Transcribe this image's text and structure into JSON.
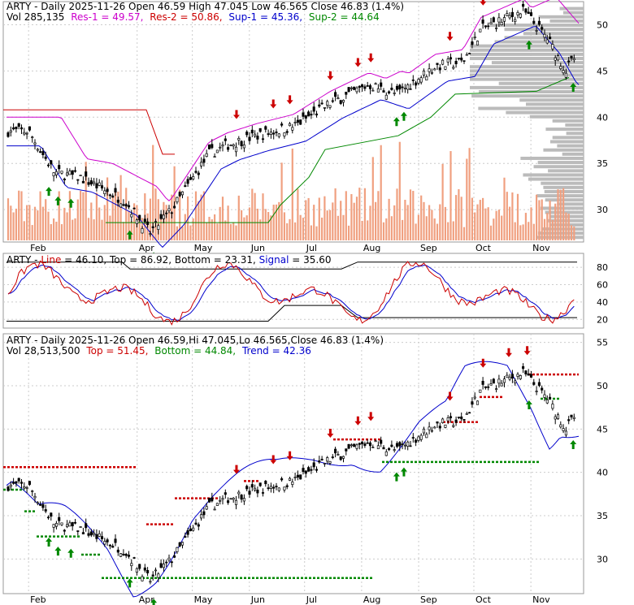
{
  "chart_data": [
    {
      "type": "candlestick",
      "panel": "price",
      "title": {
        "name": "ARTY",
        "rest": " - Daily 2025-11-26 Open 46.59  High 47.045  Low 46.565  Close 46.83 (1.4%)"
      },
      "legend": [
        {
          "label": "Vol 285,135",
          "color": "#000000"
        },
        {
          "label": "Res-1 = 49.57,",
          "color": "#cc00cc"
        },
        {
          "label": "Res-2 = 50.86,",
          "color": "#cc0000"
        },
        {
          "label": "Sup-1 = 45.36,",
          "color": "#0000cc"
        },
        {
          "label": "Sup-2 = 44.64",
          "color": "#008800"
        }
      ],
      "y_ticks": [
        "50",
        "45",
        "40",
        "35",
        "30"
      ],
      "months": [
        "Feb",
        "Apr",
        "May",
        "Jun",
        "Jul",
        "Aug",
        "Sep",
        "Oct",
        "Nov"
      ],
      "ylim": [
        26.5,
        52.5
      ],
      "key_closes": [
        [
          "2025-02-01",
          38.5
        ],
        [
          "2025-02-15",
          34.0
        ],
        [
          "2025-03-01",
          33.5
        ],
        [
          "2025-03-25",
          31.0
        ],
        [
          "2025-04-08",
          27.5
        ],
        [
          "2025-04-20",
          30.0
        ],
        [
          "2025-05-10",
          36.0
        ],
        [
          "2025-05-20",
          37.0
        ],
        [
          "2025-06-05",
          38.0
        ],
        [
          "2025-06-25",
          39.0
        ],
        [
          "2025-07-15",
          41.5
        ],
        [
          "2025-08-05",
          43.5
        ],
        [
          "2025-08-20",
          42.5
        ],
        [
          "2025-09-10",
          45.5
        ],
        [
          "2025-09-25",
          46.0
        ],
        [
          "2025-10-05",
          49.5
        ],
        [
          "2025-10-28",
          51.5
        ],
        [
          "2025-11-10",
          48.5
        ],
        [
          "2025-11-20",
          45.0
        ],
        [
          "2025-11-26",
          46.83
        ]
      ],
      "buy_signals": [
        "2025-02-12",
        "2025-02-17",
        "2025-02-24",
        "2025-03-28",
        "2025-04-10",
        "2025-08-20",
        "2025-08-24",
        "2025-10-31",
        "2025-11-24"
      ],
      "sell_signals": [
        "2025-05-25",
        "2025-06-14",
        "2025-06-23",
        "2025-07-15",
        "2025-07-30",
        "2025-08-06",
        "2025-09-18",
        "2025-10-06",
        "2025-10-20",
        "2025-10-30"
      ]
    },
    {
      "type": "line",
      "panel": "stochastic",
      "title": {
        "name": "ARTY",
        "parts": [
          {
            "label": " - ",
            "color": "#000000"
          },
          {
            "label": "Line",
            "color": "#cc0000"
          },
          {
            "label": " = 46.10, ",
            "color": "#000000"
          },
          {
            "label": "Top",
            "color": "#000000"
          },
          {
            "label": " = 86.92, ",
            "color": "#000000"
          },
          {
            "label": "Bottom",
            "color": "#000000"
          },
          {
            "label": " = 23.31, ",
            "color": "#000000"
          },
          {
            "label": "Signal",
            "color": "#0000cc"
          },
          {
            "label": " = 35.60",
            "color": "#000000"
          }
        ]
      },
      "y_ticks": [
        "80",
        "60",
        "40",
        "20"
      ],
      "ylim": [
        10,
        96
      ]
    },
    {
      "type": "candlestick",
      "panel": "price-trend",
      "title": {
        "name": "ARTY",
        "rest": " - Daily 2025-11-26 Open 46.59,Hi 47.045,Lo 46.565,Close 46.83 (1.4%)"
      },
      "legend": [
        {
          "label": "Vol 28,513,500",
          "color": "#000000"
        },
        {
          "label": "Top = 51.45,",
          "color": "#cc0000"
        },
        {
          "label": "Bottom = 44.84,",
          "color": "#008800"
        },
        {
          "label": "Trend = 42.36",
          "color": "#0000cc"
        }
      ],
      "y_ticks": [
        "55",
        "50",
        "45",
        "40",
        "35",
        "30"
      ],
      "months": [
        "Feb",
        "Apr",
        "May",
        "Jun",
        "Jul",
        "Aug",
        "Sep",
        "Oct",
        "Nov"
      ],
      "ylim": [
        26,
        56
      ]
    }
  ]
}
